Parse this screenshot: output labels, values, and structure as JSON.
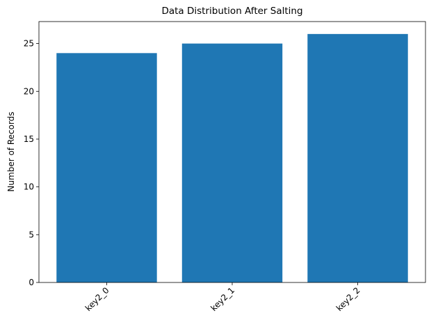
{
  "chart_data": {
    "type": "bar",
    "title": "Data Distribution After Salting",
    "y_label": "Number of Records",
    "categories": [
      "key2_0",
      "key2_1",
      "key2_2"
    ],
    "values": [
      24,
      25,
      26
    ],
    "color": "#1f77b4",
    "ylim": [
      0,
      27.3
    ],
    "yticks": [
      0,
      5,
      10,
      15,
      20,
      25
    ],
    "grid": false
  }
}
